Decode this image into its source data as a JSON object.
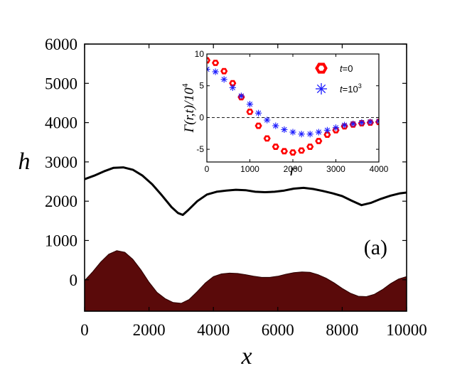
{
  "chart_data": [
    {
      "type": "line",
      "title": "",
      "xlabel": "x",
      "ylabel": "h",
      "xlim": [
        0,
        10000
      ],
      "ylim": [
        -800,
        6000
      ],
      "x_ticks": [
        "0",
        "2000",
        "4000",
        "6000",
        "8000",
        "10000"
      ],
      "y_ticks": [
        "6000",
        "5000",
        "4000",
        "3000",
        "2000",
        "1000",
        "0"
      ],
      "annotation": "(a)",
      "grid": false,
      "series": [
        {
          "role": "interface",
          "color": "#000000",
          "x": [
            0,
            300,
            600,
            900,
            1200,
            1500,
            1800,
            2100,
            2400,
            2700,
            2900,
            3050,
            3200,
            3500,
            3800,
            4100,
            4400,
            4700,
            5000,
            5300,
            5600,
            5900,
            6200,
            6500,
            6800,
            7100,
            7400,
            7700,
            8000,
            8300,
            8600,
            8900,
            9200,
            9500,
            9800,
            10000
          ],
          "values": [
            2560,
            2650,
            2760,
            2850,
            2860,
            2800,
            2650,
            2430,
            2150,
            1850,
            1700,
            1650,
            1760,
            2000,
            2170,
            2240,
            2270,
            2290,
            2280,
            2240,
            2230,
            2240,
            2270,
            2320,
            2340,
            2310,
            2260,
            2200,
            2130,
            2010,
            1900,
            1960,
            2060,
            2140,
            2200,
            2220
          ]
        },
        {
          "role": "filled-profile",
          "color": "#5a0a0a",
          "x": [
            0,
            250,
            500,
            750,
            1000,
            1250,
            1500,
            1750,
            2000,
            2250,
            2500,
            2750,
            3000,
            3250,
            3500,
            3750,
            4000,
            4250,
            4500,
            4750,
            5000,
            5250,
            5500,
            5750,
            6000,
            6250,
            6500,
            6750,
            7000,
            7250,
            7500,
            7750,
            8000,
            8250,
            8500,
            8750,
            9000,
            9250,
            9500,
            9750,
            10000
          ],
          "values": [
            -20,
            200,
            450,
            650,
            740,
            700,
            520,
            250,
            -60,
            -320,
            -480,
            -580,
            -600,
            -500,
            -300,
            -80,
            80,
            150,
            170,
            160,
            130,
            90,
            60,
            60,
            90,
            140,
            180,
            200,
            190,
            130,
            40,
            -80,
            -220,
            -340,
            -420,
            -430,
            -370,
            -250,
            -100,
            20,
            80
          ]
        }
      ]
    },
    {
      "type": "scatter",
      "title": "",
      "xlabel": "r",
      "ylabel": "Γ(r,t)/10",
      "ylabel_exponent": "4",
      "xlim": [
        0,
        4000
      ],
      "ylim": [
        -7,
        10
      ],
      "x_ticks": [
        "0",
        "1000",
        "2000",
        "3000",
        "4000"
      ],
      "y_ticks": [
        "10",
        "5",
        "0",
        "-5"
      ],
      "reference_line_y": 0,
      "legend_position": "top-right",
      "series": [
        {
          "name": "t=0",
          "label_var": "t",
          "label_eq": "=0",
          "label_exp": "",
          "marker": "hexagon",
          "color": "#ff0000",
          "x": [
            0,
            200,
            400,
            600,
            800,
            1000,
            1200,
            1400,
            1600,
            1800,
            2000,
            2200,
            2400,
            2600,
            2800,
            3000,
            3200,
            3400,
            3600,
            3800,
            4000
          ],
          "values": [
            9.0,
            8.6,
            7.3,
            5.4,
            3.2,
            0.9,
            -1.3,
            -3.3,
            -4.6,
            -5.3,
            -5.5,
            -5.2,
            -4.6,
            -3.7,
            -2.7,
            -2.0,
            -1.4,
            -1.1,
            -0.9,
            -0.8,
            -0.7
          ]
        },
        {
          "name": "t=10^3",
          "label_var": "t",
          "label_eq": "=10",
          "label_exp": "3",
          "marker": "asterisk",
          "color": "#1a1aff",
          "x": [
            0,
            200,
            400,
            600,
            800,
            1000,
            1200,
            1400,
            1600,
            1800,
            2000,
            2200,
            2400,
            2600,
            2800,
            3000,
            3200,
            3400,
            3600,
            3800,
            4000
          ],
          "values": [
            7.6,
            7.2,
            6.0,
            4.7,
            3.4,
            2.1,
            0.7,
            -0.4,
            -1.3,
            -1.9,
            -2.3,
            -2.6,
            -2.6,
            -2.3,
            -2.0,
            -1.6,
            -1.2,
            -1.0,
            -0.8,
            -0.7,
            -0.6
          ]
        }
      ]
    }
  ]
}
